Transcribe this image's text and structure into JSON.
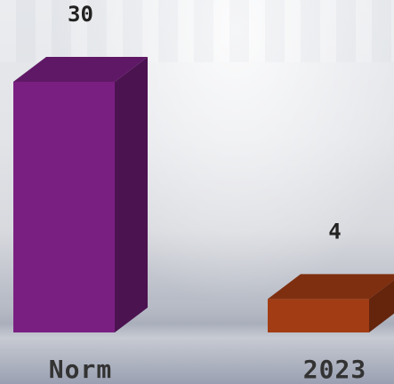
{
  "chart_data": {
    "type": "bar",
    "categories": [
      "Norm",
      "2023"
    ],
    "values": [
      30,
      4
    ],
    "colors": [
      "#7a1f82",
      "#a23c14"
    ],
    "ylim": [
      0,
      30
    ],
    "grid": false
  }
}
